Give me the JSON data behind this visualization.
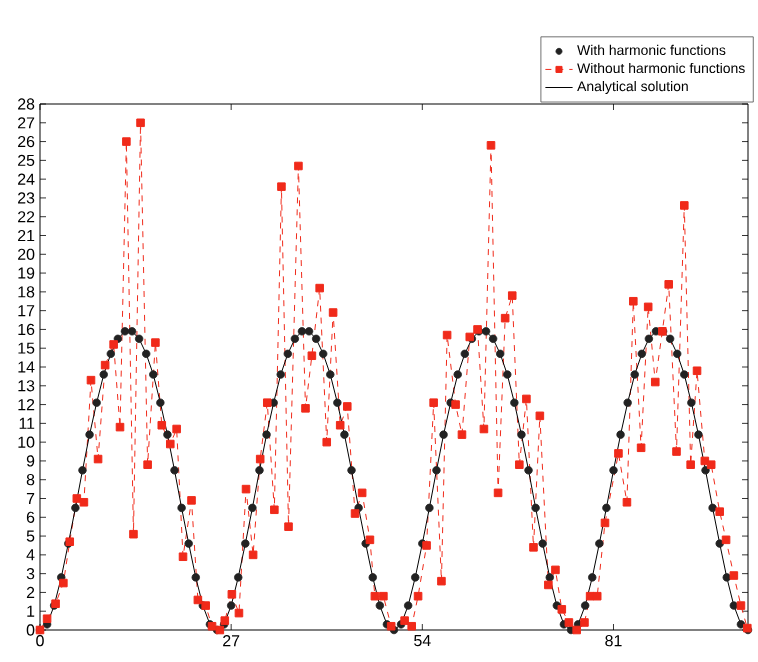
{
  "chart_data": {
    "type": "line",
    "x": [
      0,
      1,
      2,
      3,
      4,
      5,
      6,
      7,
      8,
      9,
      10,
      11,
      12,
      13,
      14,
      15,
      16,
      17,
      18,
      19,
      20,
      21,
      22,
      23,
      24,
      25,
      26,
      27,
      28,
      29,
      30,
      31,
      32,
      33,
      34,
      35,
      36,
      37,
      38,
      39,
      40,
      41,
      42,
      43,
      44,
      45,
      46,
      47,
      48,
      49,
      50,
      51,
      52,
      53,
      54,
      55,
      56,
      57,
      58,
      59,
      60,
      61,
      62,
      63,
      64,
      65,
      66,
      67,
      68,
      69,
      70,
      71,
      72,
      73,
      74,
      75,
      76,
      77,
      78,
      79,
      80,
      81,
      82,
      83,
      84,
      85,
      86,
      87,
      88,
      89,
      90,
      91,
      92,
      93,
      94,
      95,
      96,
      97,
      98,
      99,
      100
    ],
    "xlim": [
      0,
      100
    ],
    "xticks": [
      0,
      27,
      54,
      81
    ],
    "ylim": [
      0,
      28
    ],
    "yticks": [
      0,
      1,
      2,
      3,
      4,
      5,
      6,
      7,
      8,
      9,
      10,
      11,
      12,
      13,
      14,
      15,
      16,
      17,
      18,
      19,
      20,
      21,
      22,
      23,
      24,
      25,
      26,
      27,
      28
    ],
    "legend": "top right",
    "series": [
      {
        "name": "With harmonic functions",
        "type": "scatter",
        "marker": "circle",
        "color": "#222222",
        "values": [
          0,
          0.3,
          1.3,
          2.8,
          4.6,
          6.5,
          8.5,
          10.4,
          12.1,
          13.6,
          14.7,
          15.5,
          15.9,
          15.9,
          15.5,
          14.7,
          13.6,
          12.1,
          10.4,
          8.5,
          6.5,
          4.6,
          2.8,
          1.3,
          0.3,
          0,
          0.3,
          1.3,
          2.8,
          4.6,
          6.5,
          8.5,
          10.4,
          12.1,
          13.6,
          14.7,
          15.5,
          15.9,
          15.9,
          15.5,
          14.7,
          13.6,
          12.1,
          10.4,
          8.5,
          6.5,
          4.6,
          2.8,
          1.3,
          0.3,
          0,
          0.3,
          1.3,
          2.8,
          4.6,
          6.5,
          8.5,
          10.4,
          12.1,
          13.6,
          14.7,
          15.5,
          15.9,
          15.9,
          15.5,
          14.7,
          13.6,
          12.1,
          10.4,
          8.5,
          6.5,
          4.6,
          2.8,
          1.3,
          0.3,
          0,
          0.3,
          1.3,
          2.8,
          4.6,
          6.5,
          8.5,
          10.4,
          12.1,
          13.6,
          14.7,
          15.5,
          15.9,
          15.9,
          15.5,
          14.7,
          13.6,
          12.1,
          10.4,
          8.5,
          6.5,
          4.6,
          2.8,
          1.3,
          0.3,
          0
        ]
      },
      {
        "name": "Without harmonic functions",
        "marker": "square",
        "line_style": "dashed",
        "color": "#f02a1a",
        "x": [
          0,
          1,
          2.2,
          3.3,
          4.2,
          5.2,
          6.2,
          7.2,
          8.2,
          9.2,
          10.4,
          11.3,
          12.2,
          13.2,
          14.2,
          15.2,
          16.3,
          17.2,
          18.4,
          19.3,
          20.2,
          21.4,
          22.3,
          23.4,
          24.3,
          25.4,
          26.1,
          27.1,
          28.1,
          29.1,
          30.1,
          31.1,
          32.1,
          33.1,
          34.1,
          35.1,
          36.5,
          37.5,
          38.4,
          39.5,
          40.5,
          41.4,
          42.4,
          43.4,
          44.5,
          45.5,
          46.6,
          47.3,
          48.5,
          49.6,
          51.5,
          52.5,
          53.4,
          54.6,
          55.6,
          56.7,
          57.5,
          58.7,
          59.6,
          60.7,
          61.8,
          62.7,
          63.7,
          64.7,
          65.7,
          66.7,
          67.7,
          68.7,
          69.7,
          70.6,
          71.8,
          72.8,
          73.7,
          74.7,
          75.8,
          76.9,
          77.7,
          78.7,
          79.8,
          81.7,
          82.9,
          83.8,
          84.9,
          85.9,
          86.9,
          87.9,
          88.8,
          89.9,
          91,
          91.9,
          92.8,
          93.9,
          94.8,
          96,
          96.9,
          98,
          99,
          99.9
        ],
        "values": [
          0,
          0.6,
          1.4,
          2.5,
          4.7,
          7.0,
          6.8,
          13.3,
          9.1,
          14.1,
          15.2,
          10.8,
          26.0,
          5.1,
          27.0,
          8.8,
          15.3,
          10.9,
          9.9,
          10.7,
          3.9,
          6.9,
          1.6,
          1.3,
          0.2,
          0,
          0.5,
          1.9,
          0.9,
          7.5,
          4.0,
          9.1,
          12.1,
          6.4,
          23.6,
          5.5,
          24.7,
          11.8,
          14.6,
          18.2,
          10.0,
          16.9,
          10.9,
          11.9,
          6.2,
          7.3,
          4.8,
          1.8,
          1.8,
          0.2,
          0.5,
          0.2,
          1.8,
          4.5,
          12.1,
          2.6,
          15.7,
          12.0,
          10.4,
          15.6,
          16.0,
          10.7,
          25.8,
          7.3,
          16.6,
          17.8,
          8.8,
          12.3,
          4.4,
          11.4,
          2.4,
          3.2,
          1.1,
          0.4,
          0,
          0.4,
          1.8,
          1.8,
          5.7,
          9.4,
          6.8,
          17.5,
          9.7,
          17.2,
          13.2,
          15.9,
          18.4,
          9.5,
          22.6,
          8.8,
          13.8,
          9.0,
          8.8,
          6.3,
          4.8,
          2.9,
          1.3,
          0.1
        ]
      },
      {
        "name": "Analytical solution",
        "marker": "none",
        "line_style": "solid",
        "color": "#000000",
        "values": [
          0,
          0.3,
          1.3,
          2.8,
          4.6,
          6.5,
          8.5,
          10.4,
          12.1,
          13.6,
          14.7,
          15.5,
          15.9,
          15.9,
          15.5,
          14.7,
          13.6,
          12.1,
          10.4,
          8.5,
          6.5,
          4.6,
          2.8,
          1.3,
          0.3,
          0,
          0.3,
          1.3,
          2.8,
          4.6,
          6.5,
          8.5,
          10.4,
          12.1,
          13.6,
          14.7,
          15.5,
          15.9,
          15.9,
          15.5,
          14.7,
          13.6,
          12.1,
          10.4,
          8.5,
          6.5,
          4.6,
          2.8,
          1.3,
          0.3,
          0,
          0.3,
          1.3,
          2.8,
          4.6,
          6.5,
          8.5,
          10.4,
          12.1,
          13.6,
          14.7,
          15.5,
          15.9,
          15.9,
          15.5,
          14.7,
          13.6,
          12.1,
          10.4,
          8.5,
          6.5,
          4.6,
          2.8,
          1.3,
          0.3,
          0,
          0.3,
          1.3,
          2.8,
          4.6,
          6.5,
          8.5,
          10.4,
          12.1,
          13.6,
          14.7,
          15.5,
          15.9,
          15.9,
          15.5,
          14.7,
          13.6,
          12.1,
          10.4,
          8.5,
          6.5,
          4.6,
          2.8,
          1.3,
          0.3,
          0
        ]
      }
    ]
  }
}
